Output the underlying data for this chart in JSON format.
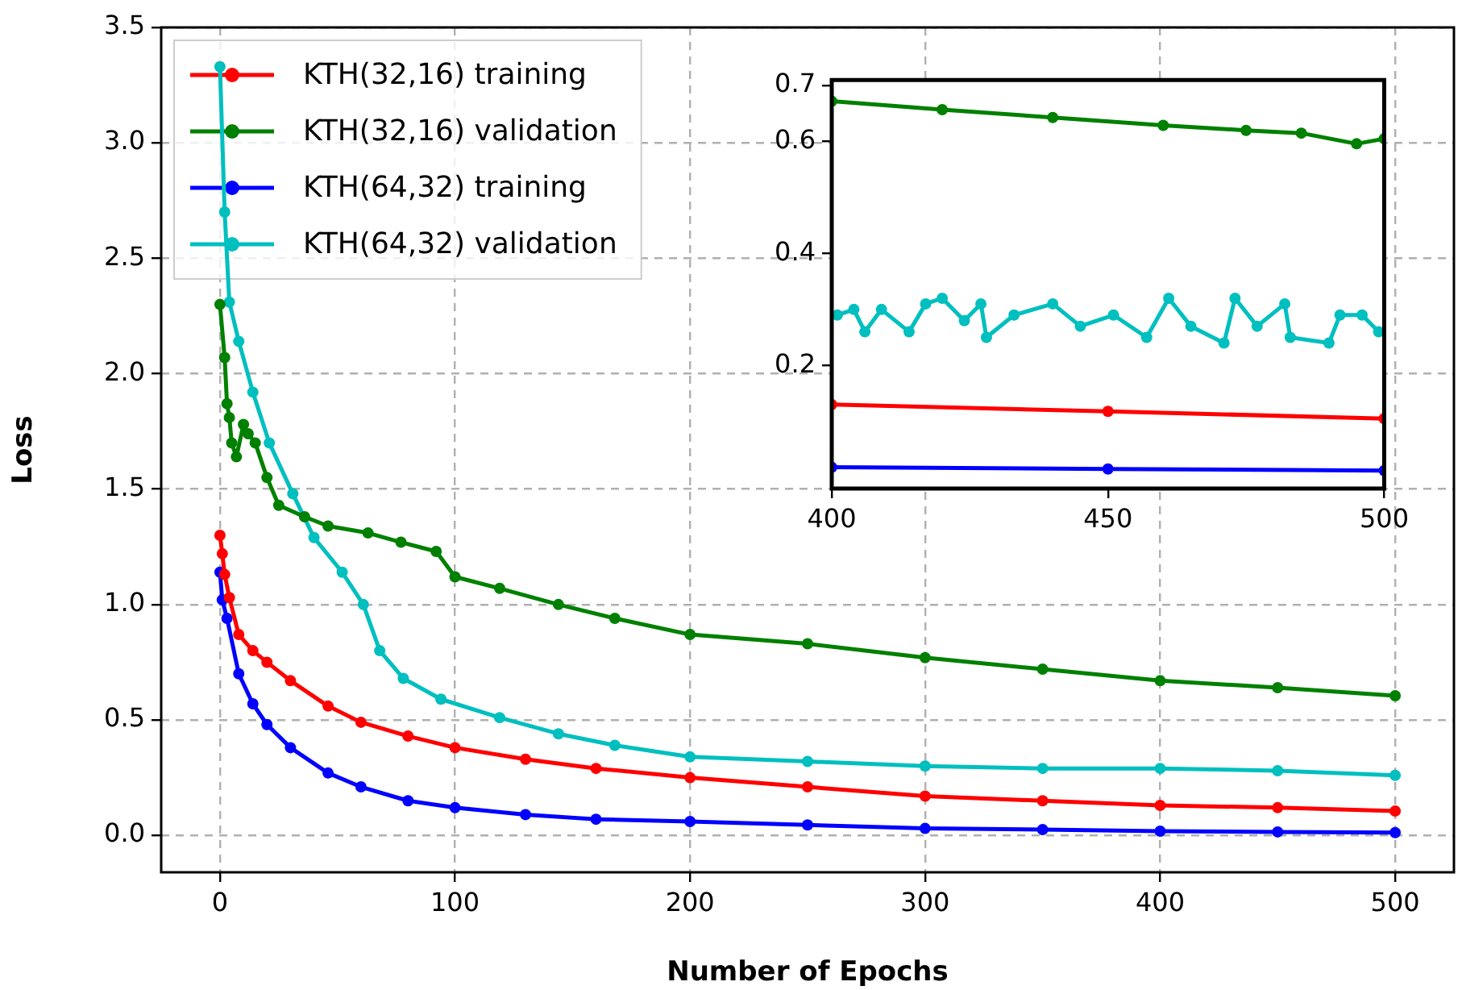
{
  "chart_data": [
    {
      "type": "line",
      "xlabel": "Number of Epochs",
      "ylabel": "Loss",
      "xlim": [
        -25,
        525
      ],
      "ylim": [
        -0.16,
        3.5
      ],
      "xticks": [
        0,
        100,
        200,
        300,
        400,
        500
      ],
      "yticks": [
        {
          "value": 0,
          "label": "0.0"
        },
        0.5,
        {
          "value": 1,
          "label": "1.0"
        },
        1.5,
        {
          "value": 2,
          "label": "2.0"
        },
        2.5,
        {
          "value": 3,
          "label": "3.0"
        },
        3.5
      ],
      "grid": true,
      "legend": "top left",
      "marker": "circle",
      "line_style": "solid",
      "series": [
        {
          "name": "KTH(32,16) training",
          "color": "#ff0000",
          "x": [
            0,
            1,
            2,
            4,
            8,
            14,
            20,
            30,
            46,
            60,
            80,
            100,
            130,
            160,
            200,
            250,
            300,
            350,
            400,
            450,
            500
          ],
          "values": [
            1.3,
            1.22,
            1.13,
            1.03,
            0.87,
            0.8,
            0.75,
            0.67,
            0.56,
            0.49,
            0.43,
            0.38,
            0.33,
            0.29,
            0.25,
            0.21,
            0.17,
            0.15,
            0.13,
            0.12,
            0.105
          ]
        },
        {
          "name": "KTH(32,16) validation",
          "color": "#008000",
          "x": [
            0,
            2,
            3,
            4,
            5,
            7,
            10,
            12,
            15,
            20,
            25,
            36,
            46,
            63,
            77,
            92,
            100,
            119,
            144,
            168,
            200,
            250,
            300,
            350,
            400,
            450,
            500
          ],
          "values": [
            2.3,
            2.07,
            1.87,
            1.81,
            1.7,
            1.64,
            1.78,
            1.74,
            1.7,
            1.55,
            1.43,
            1.38,
            1.34,
            1.31,
            1.27,
            1.23,
            1.12,
            1.07,
            1.0,
            0.94,
            0.87,
            0.83,
            0.77,
            0.72,
            0.67,
            0.64,
            0.605
          ]
        },
        {
          "name": "KTH(64,32) training",
          "color": "#0000ff",
          "x": [
            0,
            1,
            3,
            8,
            14,
            20,
            30,
            46,
            60,
            80,
            100,
            130,
            160,
            200,
            250,
            300,
            350,
            400,
            450,
            500
          ],
          "values": [
            1.14,
            1.02,
            0.94,
            0.7,
            0.57,
            0.48,
            0.38,
            0.27,
            0.21,
            0.15,
            0.12,
            0.09,
            0.07,
            0.06,
            0.045,
            0.03,
            0.025,
            0.018,
            0.015,
            0.012
          ]
        },
        {
          "name": "KTH(64,32) validation",
          "color": "#00bfbf",
          "x": [
            0,
            2,
            4,
            8,
            14,
            21,
            31,
            40,
            52,
            61,
            68,
            78,
            94,
            119,
            144,
            168,
            200,
            250,
            300,
            350,
            400,
            450,
            500
          ],
          "values": [
            3.33,
            2.7,
            2.31,
            2.14,
            1.92,
            1.7,
            1.48,
            1.29,
            1.14,
            1.0,
            0.8,
            0.68,
            0.59,
            0.51,
            0.44,
            0.39,
            0.34,
            0.32,
            0.3,
            0.29,
            0.29,
            0.28,
            0.26
          ]
        }
      ]
    },
    {
      "type": "line",
      "xlim": [
        400,
        500
      ],
      "ylim": [
        -0.02,
        0.71
      ],
      "xticks": [
        400,
        450,
        500
      ],
      "yticks": [
        0.2,
        0.4,
        0.6,
        0.7
      ],
      "marker": "circle",
      "line_style": "solid",
      "series": [
        {
          "color": "#ff0000",
          "x": [
            400,
            450,
            500
          ],
          "values": [
            0.13,
            0.118,
            0.105
          ]
        },
        {
          "color": "#008000",
          "x": [
            400,
            420,
            440,
            460,
            475,
            485,
            495,
            500
          ],
          "values": [
            0.672,
            0.657,
            0.643,
            0.629,
            0.62,
            0.615,
            0.596,
            0.605
          ]
        },
        {
          "color": "#0000ff",
          "x": [
            400,
            450,
            500
          ],
          "values": [
            0.018,
            0.015,
            0.012
          ]
        },
        {
          "color": "#00bfbf",
          "x": [
            401,
            404,
            406,
            409,
            414,
            417,
            420,
            424,
            427,
            428,
            433,
            440,
            445,
            451,
            457,
            461,
            465,
            471,
            473,
            477,
            482,
            483,
            490,
            492,
            496,
            499
          ],
          "values": [
            0.29,
            0.3,
            0.26,
            0.3,
            0.26,
            0.31,
            0.32,
            0.28,
            0.31,
            0.25,
            0.29,
            0.31,
            0.27,
            0.29,
            0.25,
            0.32,
            0.27,
            0.24,
            0.32,
            0.27,
            0.31,
            0.25,
            0.24,
            0.29,
            0.29,
            0.26
          ]
        }
      ]
    }
  ]
}
